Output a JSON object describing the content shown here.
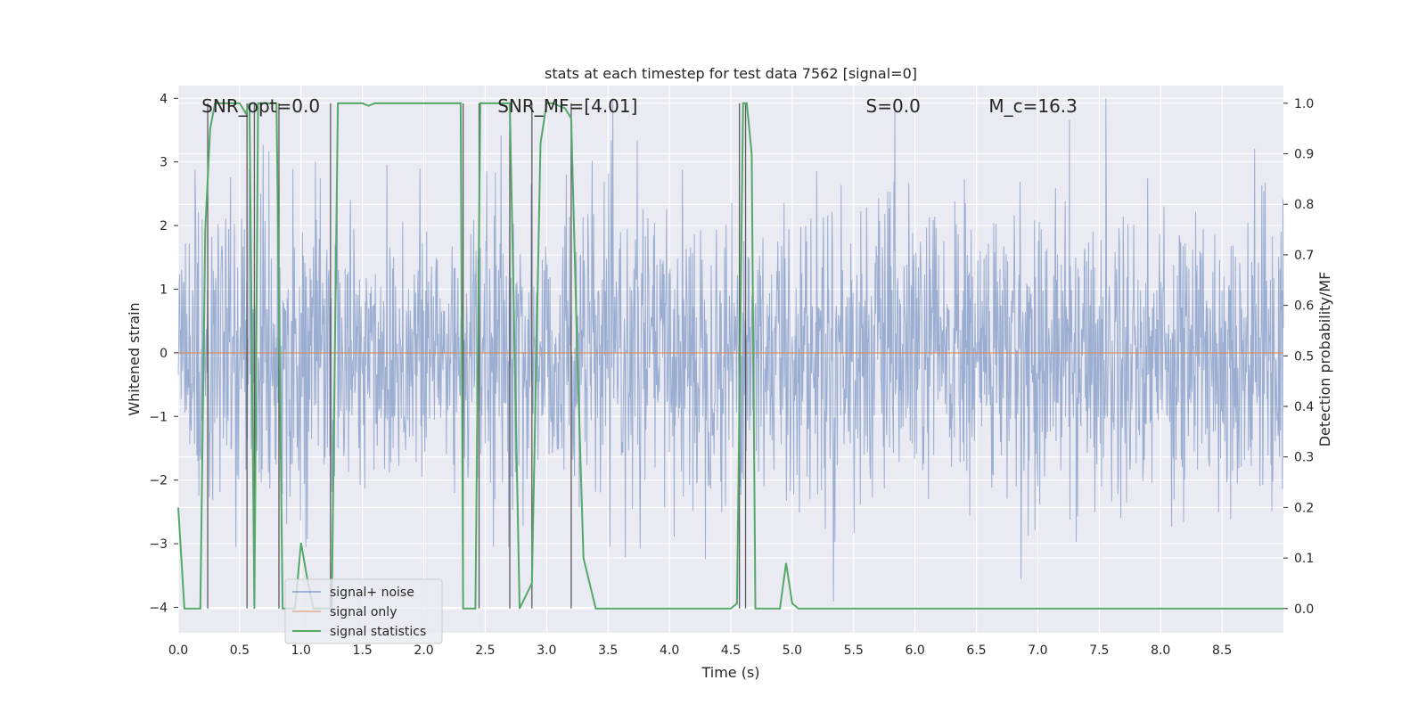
{
  "chart_data": {
    "type": "line",
    "title": "stats at each timestep for test data 7562 [signal=0]",
    "xlabel": "Time (s)",
    "ylabel": "Whitened strain",
    "y2label": "Detection probability/MF",
    "xlim": [
      0.0,
      9.0
    ],
    "ylim": [
      -4.4,
      4.2
    ],
    "y2lim": [
      -0.048,
      1.035
    ],
    "xticks": [
      "0.0",
      "0.5",
      "1.0",
      "1.5",
      "2.0",
      "2.5",
      "3.0",
      "3.5",
      "4.0",
      "4.5",
      "5.0",
      "5.5",
      "6.0",
      "6.5",
      "7.0",
      "7.5",
      "8.0",
      "8.5"
    ],
    "yticks": [
      "4",
      "3",
      "2",
      "1",
      "0",
      "−1",
      "−2",
      "−3",
      "−4"
    ],
    "y2ticks": [
      "1.0",
      "0.9",
      "0.8",
      "0.7",
      "0.6",
      "0.5",
      "0.4",
      "0.3",
      "0.2",
      "0.1",
      "0.0"
    ],
    "annotations": [
      {
        "id": "snr-opt",
        "text": "SNR_opt=0.0",
        "x": 0.19,
        "y": 3.88
      },
      {
        "id": "snr-mf",
        "text": "SNR_MF=[4.01]",
        "x": 2.6,
        "y": 3.88
      },
      {
        "id": "s-stat",
        "text": "S=0.0",
        "x": 5.6,
        "y": 3.88
      },
      {
        "id": "mc",
        "text": "M_c=16.3",
        "x": 6.6,
        "y": 3.88
      }
    ],
    "legend": {
      "placement": "lower-left",
      "entries": [
        "signal+ noise",
        "signal only",
        "signal statistics"
      ]
    },
    "series": [
      {
        "name": "signal+ noise",
        "axis": "left",
        "color": "#4c72b0",
        "sample_rate_hz": 256,
        "duration_s": 9.0,
        "amplitude_std": 1.15,
        "peak_abs": 4.0
      },
      {
        "name": "signal only",
        "axis": "left",
        "color": "#dd8452",
        "x": [
          0.0,
          9.0
        ],
        "y": [
          0.0,
          0.0
        ]
      },
      {
        "name": "signal statistics",
        "axis": "right",
        "color": "#55a868",
        "x": [
          0.0,
          0.05,
          0.1,
          0.18,
          0.22,
          0.26,
          0.3,
          0.5,
          0.55,
          0.58,
          0.62,
          0.65,
          0.7,
          0.8,
          0.85,
          0.95,
          1.0,
          1.05,
          1.1,
          1.2,
          1.25,
          1.3,
          1.5,
          1.55,
          1.6,
          2.3,
          2.32,
          2.38,
          2.42,
          2.46,
          2.5,
          2.7,
          2.78,
          2.82,
          2.88,
          2.95,
          3.0,
          3.05,
          3.15,
          3.2,
          3.25,
          3.3,
          3.4,
          3.45,
          3.5,
          4.5,
          4.55,
          4.6,
          4.63,
          4.67,
          4.7,
          4.8,
          4.9,
          4.95,
          5.0,
          5.05,
          5.1,
          8.2,
          8.3,
          8.4,
          9.0
        ],
        "y": [
          0.2,
          0.0,
          0.0,
          0.0,
          0.75,
          0.95,
          1.0,
          1.0,
          0.98,
          1.0,
          0.0,
          1.0,
          1.0,
          1.0,
          0.0,
          0.0,
          0.13,
          0.06,
          0.0,
          0.0,
          0.0,
          1.0,
          1.0,
          0.995,
          1.0,
          1.0,
          0.0,
          0.0,
          0.0,
          1.0,
          1.0,
          1.0,
          0.0,
          0.02,
          0.05,
          0.92,
          1.0,
          1.0,
          0.99,
          0.97,
          0.5,
          0.1,
          0.0,
          0.0,
          0.0,
          0.0,
          0.01,
          1.0,
          1.0,
          0.9,
          0.0,
          0.0,
          0.0,
          0.09,
          0.01,
          0.0,
          0.0,
          0.0,
          0.0,
          0.0,
          0.0
        ]
      },
      {
        "name": "",
        "axis": "right",
        "color": "#444444",
        "kind": "vlines",
        "x": [
          0.24,
          0.56,
          0.62,
          0.82,
          1.24,
          2.32,
          2.45,
          2.7,
          2.88,
          3.2,
          4.57,
          4.62
        ],
        "ymin": 0.0,
        "ymax": 1.0
      }
    ]
  },
  "colors": {
    "axes_bg": "#eaeaf2",
    "grid": "#ffffff",
    "text": "#262626"
  }
}
